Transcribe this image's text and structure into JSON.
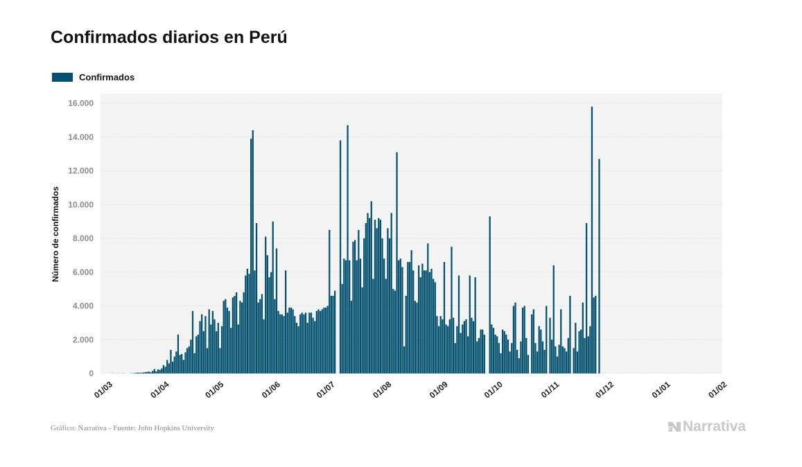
{
  "header": {
    "title": "Confirmados diarios en Perú"
  },
  "legend": {
    "label": "Confirmados",
    "color": "#04506f"
  },
  "footer": {
    "source": "Gráfico: Narrativa - Fuente: John Hopkins University",
    "brand": "Narrativa"
  },
  "chart_data": {
    "type": "bar",
    "title": "Confirmados diarios en Perú",
    "xlabel": "",
    "ylabel": "Número de confirmados",
    "ylim": [
      0,
      16000
    ],
    "yticks": [
      0,
      2000,
      4000,
      6000,
      8000,
      10000,
      12000,
      14000,
      16000
    ],
    "ytick_labels": [
      "0",
      "2.000",
      "4.000",
      "6.000",
      "8.000",
      "10.000",
      "12.000",
      "14.000",
      "16.000"
    ],
    "xtick_labels": [
      "01/03",
      "01/04",
      "01/05",
      "01/06",
      "01/07",
      "01/08",
      "01/09",
      "01/10",
      "01/11",
      "01/12",
      "01/01",
      "01/02"
    ],
    "xtick_offsets": [
      0,
      31,
      61,
      92,
      122,
      153,
      184,
      214,
      245,
      275,
      306,
      337
    ],
    "x_unit": "day index from 01/03",
    "grid": true,
    "legend_position": "top-left",
    "series": [
      {
        "name": "Confirmados",
        "color": "#04506f",
        "values": [
          0,
          0,
          0,
          0,
          0,
          6,
          0,
          3,
          2,
          5,
          0,
          12,
          0,
          0,
          0,
          10,
          15,
          20,
          40,
          50,
          35,
          45,
          60,
          80,
          90,
          110,
          70,
          150,
          260,
          120,
          240,
          200,
          300,
          500,
          400,
          800,
          600,
          1400,
          700,
          1000,
          1300,
          2300,
          1100,
          1150,
          800,
          1250,
          1500,
          1600,
          2000,
          3700,
          1200,
          2200,
          2300,
          3100,
          3500,
          2500,
          3400,
          1500,
          3800,
          2900,
          3700,
          3200,
          2500,
          3000,
          1500,
          2800,
          4300,
          4400,
          3900,
          3700,
          2700,
          4500,
          4600,
          4800,
          2900,
          4300,
          4200,
          4800,
          5800,
          6200,
          5900,
          13900,
          14400,
          6100,
          8900,
          4200,
          4400,
          4700,
          3200,
          8100,
          7000,
          5700,
          6000,
          9000,
          4400,
          7400,
          3700,
          3500,
          3500,
          3400,
          6100,
          3600,
          3900,
          3900,
          3800,
          3400,
          3000,
          2800,
          3500,
          3600,
          3500,
          3600,
          3000,
          3600,
          3600,
          3300,
          3100,
          3700,
          3800,
          3700,
          3800,
          3900,
          3900,
          4000,
          8500,
          4600,
          4600,
          4900,
          0,
          0,
          13800,
          5300,
          6800,
          6700,
          14700,
          6700,
          4300,
          7800,
          7900,
          6700,
          8500,
          6800,
          5100,
          8000,
          8900,
          9500,
          9200,
          10200,
          5600,
          9100,
          8600,
          9200,
          9100,
          8000,
          6800,
          5600,
          8600,
          8000,
          9500,
          5000,
          4900,
          13100,
          6700,
          6800,
          6300,
          1600,
          4600,
          6600,
          6600,
          7300,
          6100,
          4300,
          4200,
          6400,
          5700,
          6500,
          6100,
          6100,
          7700,
          6000,
          6200,
          5600,
          5400,
          3400,
          2800,
          3400,
          3200,
          6600,
          2900,
          2800,
          3200,
          7500,
          3300,
          1800,
          2800,
          5800,
          2400,
          2900,
          3100,
          3200,
          2200,
          5800,
          3300,
          3100,
          5700,
          1900,
          2100,
          2600,
          2600,
          2300,
          0,
          0,
          9300,
          2900,
          2700,
          2300,
          2200,
          1800,
          1200,
          2600,
          2500,
          2300,
          2000,
          1300,
          1800,
          4000,
          4200,
          1400,
          900,
          1900,
          3900,
          4000,
          2100,
          1100,
          0,
          3500,
          3800,
          1800,
          1300,
          2800,
          2600,
          1900,
          1400,
          4000,
          0,
          3300,
          2000,
          6400,
          1600,
          1000,
          1700,
          3800,
          1600,
          1500,
          1300,
          2100,
          4600,
          0,
          1500,
          3000,
          1300,
          2500,
          2600,
          4200,
          2100,
          8900,
          2200,
          2800,
          15800,
          4500,
          4600,
          0,
          12700,
          0,
          0,
          0,
          0,
          0,
          0,
          0,
          0,
          0,
          0,
          0,
          0,
          0,
          0
        ]
      }
    ]
  }
}
